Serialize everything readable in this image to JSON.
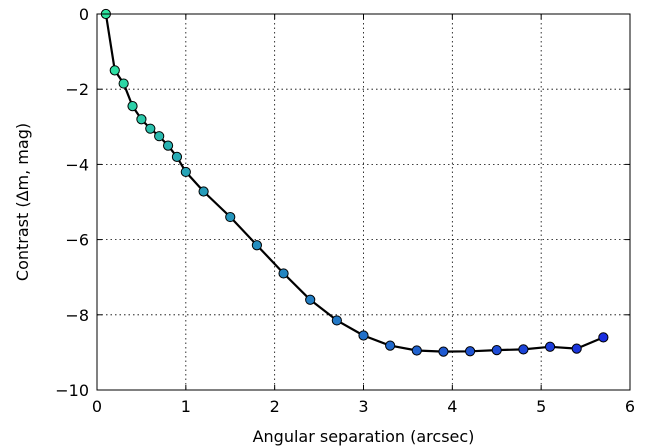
{
  "chart_data": {
    "type": "line",
    "title": "",
    "xlabel": "Angular separation (arcsec)",
    "ylabel": "Contrast (Δm, mag)",
    "xlim": [
      0,
      6
    ],
    "ylim": [
      -10,
      0
    ],
    "xticks": [
      0,
      1,
      2,
      3,
      4,
      5,
      6
    ],
    "yticks": [
      0,
      -2,
      -4,
      -6,
      -8,
      -10
    ],
    "xtick_labels": [
      "0",
      "1",
      "2",
      "3",
      "4",
      "5",
      "6"
    ],
    "ytick_labels": [
      "0",
      "−2",
      "−4",
      "−6",
      "−8",
      "−10"
    ],
    "grid": true,
    "line_color": "#000000",
    "marker_color_start": "#2ee6a0",
    "marker_color_end": "#1a2ee0",
    "series": [
      {
        "x": [
          0.1,
          0.2,
          0.3,
          0.4,
          0.5,
          0.6,
          0.7,
          0.8,
          0.9,
          1.0,
          1.2,
          1.5,
          1.8,
          2.1,
          2.4,
          2.7,
          3.0,
          3.3,
          3.6,
          3.9,
          4.2,
          4.5,
          4.8,
          5.1,
          5.4,
          5.7
        ],
        "y": [
          0.0,
          -1.5,
          -1.85,
          -2.45,
          -2.8,
          -3.05,
          -3.25,
          -3.5,
          -3.8,
          -4.2,
          -4.72,
          -5.4,
          -6.15,
          -6.9,
          -7.6,
          -8.15,
          -8.55,
          -8.82,
          -8.95,
          -8.98,
          -8.97,
          -8.94,
          -8.92,
          -8.85,
          -8.9,
          -8.6
        ]
      }
    ]
  }
}
